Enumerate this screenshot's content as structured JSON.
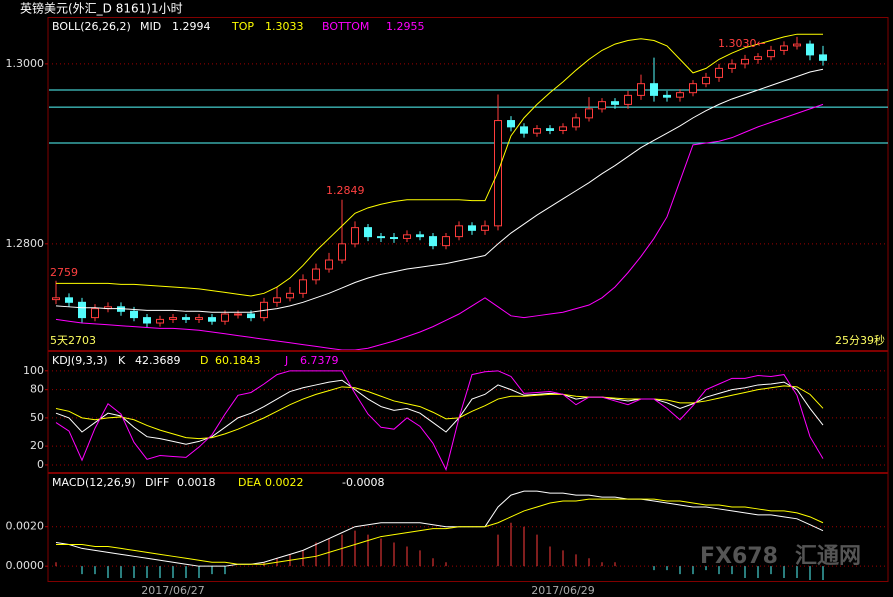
{
  "header": {
    "title": "英镑美元(外汇_D 8161)1小时"
  },
  "status": {
    "timer": "25分39秒"
  },
  "watermark": {
    "brand": "FX678",
    "site": "汇通网"
  },
  "chart_data": [
    {
      "type": "candlestick",
      "legend_title": "BOLL(26,26,2)",
      "open": [
        1.2738,
        1.274,
        1.2735,
        1.2718,
        1.2728,
        1.273,
        1.2725,
        1.2718,
        1.2712,
        1.2716,
        1.2718,
        1.2716,
        1.2718,
        1.2714,
        1.2722,
        1.2722,
        1.2718,
        1.2735,
        1.274,
        1.2745,
        1.276,
        1.2772,
        1.2782,
        1.28,
        1.2818,
        1.2808,
        1.2807,
        1.2806,
        1.281,
        1.2808,
        1.2798,
        1.2808,
        1.282,
        1.2815,
        1.282,
        1.2937,
        1.293,
        1.2923,
        1.2928,
        1.2926,
        1.293,
        1.294,
        1.295,
        1.2958,
        1.2955,
        1.2965,
        1.2978,
        1.2965,
        1.2963,
        1.2968,
        1.2978,
        1.2985,
        1.2995,
        1.3,
        1.3005,
        1.3008,
        1.3015,
        1.302,
        1.3022,
        1.301
      ],
      "high": [
        1.2759,
        1.2745,
        1.274,
        1.2733,
        1.2735,
        1.2735,
        1.273,
        1.2722,
        1.272,
        1.2722,
        1.2722,
        1.2722,
        1.2722,
        1.2726,
        1.2726,
        1.2726,
        1.274,
        1.2752,
        1.2752,
        1.2766,
        1.2778,
        1.279,
        1.2849,
        1.2825,
        1.2822,
        1.2812,
        1.2812,
        1.2815,
        1.2814,
        1.2812,
        1.2812,
        1.2825,
        1.2824,
        1.2826,
        1.2966,
        1.2942,
        1.2934,
        1.2932,
        1.2932,
        1.2934,
        1.2945,
        1.2963,
        1.2962,
        1.2962,
        1.297,
        1.2988,
        1.3007,
        1.297,
        1.2972,
        1.2982,
        1.299,
        1.3,
        1.3005,
        1.301,
        1.3012,
        1.302,
        1.3025,
        1.303,
        1.3026,
        1.302
      ],
      "low": [
        1.2733,
        1.273,
        1.2712,
        1.2714,
        1.2724,
        1.272,
        1.2714,
        1.2707,
        1.2708,
        1.2712,
        1.2712,
        1.2712,
        1.271,
        1.271,
        1.2717,
        1.2714,
        1.2714,
        1.273,
        1.2736,
        1.274,
        1.2755,
        1.2768,
        1.2778,
        1.2796,
        1.2803,
        1.2802,
        1.2801,
        1.2802,
        1.2804,
        1.2794,
        1.2794,
        1.2804,
        1.281,
        1.281,
        1.2815,
        1.2925,
        1.2918,
        1.2919,
        1.2922,
        1.2922,
        1.2926,
        1.2936,
        1.2946,
        1.295,
        1.295,
        1.296,
        1.2958,
        1.2958,
        1.2958,
        1.2964,
        1.2974,
        1.298,
        1.299,
        1.2995,
        1.3,
        1.3004,
        1.301,
        1.3016,
        1.3004,
        1.2998
      ],
      "close": [
        1.274,
        1.2735,
        1.2718,
        1.2728,
        1.273,
        1.2725,
        1.2718,
        1.2712,
        1.2716,
        1.2718,
        1.2716,
        1.2718,
        1.2714,
        1.2722,
        1.2722,
        1.2718,
        1.2735,
        1.274,
        1.2745,
        1.276,
        1.2772,
        1.2782,
        1.28,
        1.2818,
        1.2808,
        1.2807,
        1.2806,
        1.281,
        1.2808,
        1.2798,
        1.2808,
        1.282,
        1.2815,
        1.282,
        1.2937,
        1.293,
        1.2923,
        1.2928,
        1.2926,
        1.293,
        1.294,
        1.295,
        1.2958,
        1.2955,
        1.2965,
        1.2978,
        1.2965,
        1.2963,
        1.2968,
        1.2978,
        1.2985,
        1.2995,
        1.3,
        1.3005,
        1.3008,
        1.3015,
        1.302,
        1.3022,
        1.301,
        1.3004
      ],
      "up_color": "#ff3c3c",
      "down_color": "#54fcfc",
      "series": [
        {
          "name": "MID",
          "color": "#ffffff",
          "values": [
            1.2731,
            1.273,
            1.2729,
            1.2729,
            1.2728,
            1.2728,
            1.2727,
            1.2726,
            1.2726,
            1.2726,
            1.2725,
            1.2725,
            1.2724,
            1.2724,
            1.2724,
            1.2724,
            1.2726,
            1.2728,
            1.2731,
            1.2735,
            1.274,
            1.2745,
            1.2751,
            1.2757,
            1.2762,
            1.2766,
            1.2769,
            1.2772,
            1.2774,
            1.2776,
            1.2778,
            1.2781,
            1.2784,
            1.2787,
            1.28,
            1.2812,
            1.2822,
            1.2832,
            1.2841,
            1.285,
            1.2859,
            1.2868,
            1.2878,
            1.2887,
            1.2897,
            1.2907,
            1.2915,
            1.2923,
            1.2931,
            1.294,
            1.2948,
            1.2955,
            1.2961,
            1.2966,
            1.2971,
            1.2976,
            1.2981,
            1.2986,
            1.2991,
            1.2994
          ]
        },
        {
          "name": "TOP",
          "color": "#ffff00",
          "values": [
            1.2756,
            1.2756,
            1.2756,
            1.2756,
            1.2756,
            1.2755,
            1.2755,
            1.2754,
            1.2753,
            1.2752,
            1.2751,
            1.275,
            1.2748,
            1.2746,
            1.2744,
            1.2742,
            1.2745,
            1.2752,
            1.2762,
            1.2776,
            1.2792,
            1.2806,
            1.282,
            1.2834,
            1.284,
            1.2844,
            1.2847,
            1.2849,
            1.2849,
            1.2849,
            1.2849,
            1.2849,
            1.2848,
            1.2848,
            1.288,
            1.292,
            1.294,
            1.2955,
            1.2968,
            1.298,
            1.2993,
            1.3005,
            1.3015,
            1.3022,
            1.3026,
            1.3028,
            1.3026,
            1.302,
            1.3005,
            1.299,
            1.2995,
            1.3005,
            1.3012,
            1.3018,
            1.3022,
            1.3026,
            1.303,
            1.3033,
            1.3033,
            1.3033
          ]
        },
        {
          "name": "BOTTOM",
          "color": "#ff00ff",
          "values": [
            1.2716,
            1.2714,
            1.2712,
            1.2711,
            1.271,
            1.2709,
            1.2708,
            1.2707,
            1.2706,
            1.2706,
            1.2705,
            1.2704,
            1.2702,
            1.27,
            1.2698,
            1.2696,
            1.2694,
            1.2692,
            1.269,
            1.2688,
            1.2686,
            1.2684,
            1.2682,
            1.2682,
            1.2684,
            1.2688,
            1.2692,
            1.2697,
            1.2702,
            1.2708,
            1.2715,
            1.2722,
            1.2731,
            1.274,
            1.273,
            1.272,
            1.2718,
            1.272,
            1.2722,
            1.2724,
            1.2728,
            1.2732,
            1.274,
            1.2752,
            1.2768,
            1.2786,
            1.2806,
            1.283,
            1.287,
            1.291,
            1.2912,
            1.2914,
            1.2918,
            1.2924,
            1.293,
            1.2935,
            1.294,
            1.2945,
            1.295,
            1.2955
          ]
        }
      ],
      "hlines": [
        1.2971,
        1.2952,
        1.2912
      ],
      "hline_color": "#54fcfc",
      "annotations": [
        "1.3030←",
        "1.2849",
        "2759",
        "5天2703"
      ],
      "ylim": [
        1.2682,
        1.3051
      ],
      "yticks": [
        {
          "value": 1.3,
          "label": "1.3000"
        },
        {
          "value": 1.28,
          "label": "1.2800"
        }
      ],
      "grid": true
    },
    {
      "type": "line",
      "legend_title": "KDJ(9,3,3)",
      "series": [
        {
          "name": "K",
          "color": "#ffffff",
          "values": [
            55,
            50,
            35,
            45,
            55,
            52,
            40,
            30,
            28,
            25,
            22,
            25,
            30,
            40,
            50,
            55,
            62,
            70,
            78,
            82,
            85,
            88,
            90,
            80,
            70,
            62,
            58,
            60,
            55,
            45,
            35,
            50,
            70,
            75,
            85,
            80,
            74,
            75,
            76,
            75,
            70,
            72,
            72,
            70,
            68,
            70,
            70,
            66,
            60,
            65,
            72,
            76,
            80,
            82,
            85,
            86,
            88,
            80,
            60,
            42.3689
          ]
        },
        {
          "name": "D",
          "color": "#ffff00",
          "values": [
            60,
            57,
            50,
            48,
            50,
            51,
            48,
            42,
            37,
            33,
            29,
            28,
            29,
            33,
            38,
            44,
            50,
            57,
            64,
            70,
            75,
            79,
            83,
            82,
            78,
            73,
            68,
            65,
            62,
            56,
            49,
            50,
            57,
            63,
            70,
            73,
            73,
            74,
            75,
            75,
            73,
            72,
            72,
            71,
            70,
            70,
            70,
            69,
            66,
            66,
            68,
            71,
            74,
            77,
            80,
            82,
            84,
            83,
            75,
            60.1843
          ]
        },
        {
          "name": "J",
          "color": "#ff00ff",
          "values": [
            45,
            36,
            5,
            39,
            65,
            54,
            24,
            6,
            10,
            9,
            8,
            19,
            32,
            54,
            74,
            77,
            86,
            96,
            100,
            100,
            100,
            100,
            100,
            76,
            54,
            40,
            38,
            50,
            41,
            23,
            -5,
            50,
            96,
            99,
            100,
            94,
            76,
            77,
            78,
            75,
            64,
            72,
            72,
            68,
            64,
            70,
            70,
            60,
            48,
            63,
            80,
            86,
            92,
            92,
            95,
            94,
            96,
            74,
            30,
            6.7379
          ]
        }
      ],
      "ylim": [
        -7.5,
        120
      ],
      "yticks": [
        0,
        20,
        50,
        80,
        100
      ],
      "grid": true
    },
    {
      "type": "macd",
      "legend_title": "MACD(12,26,9)",
      "categories": [
        null,
        null,
        null,
        null,
        null,
        null,
        null,
        null,
        null,
        "2017/06/27",
        null,
        null,
        null,
        null,
        null,
        null,
        null,
        null,
        null,
        null,
        null,
        null,
        null,
        null,
        null,
        null,
        null,
        null,
        null,
        null,
        null,
        null,
        null,
        null,
        null,
        null,
        null,
        null,
        null,
        "2017/06/29",
        null,
        null,
        null,
        null,
        null,
        null,
        null,
        null,
        null,
        null,
        null,
        null,
        null,
        null,
        null,
        null,
        null,
        null,
        null,
        null
      ],
      "series": [
        {
          "name": "DIFF",
          "color": "#ffffff",
          "values": [
            0.0012,
            0.0011,
            0.0009,
            0.0008,
            0.0007,
            0.0006,
            0.0005,
            0.0004,
            0.0003,
            0.0002,
            0.0001,
            0.0,
            0.0,
            0.0,
            0.0001,
            0.0001,
            0.0002,
            0.0004,
            0.0006,
            0.0008,
            0.0011,
            0.0014,
            0.0017,
            0.002,
            0.0021,
            0.0022,
            0.0022,
            0.0022,
            0.0022,
            0.0021,
            0.002,
            0.002,
            0.002,
            0.002,
            0.003,
            0.0036,
            0.0038,
            0.0038,
            0.0037,
            0.0037,
            0.0036,
            0.0036,
            0.0035,
            0.0035,
            0.0034,
            0.0034,
            0.0033,
            0.0032,
            0.0031,
            0.003,
            0.003,
            0.0029,
            0.0028,
            0.0027,
            0.0026,
            0.0026,
            0.0025,
            0.0024,
            0.0021,
            0.0018
          ]
        },
        {
          "name": "DEA",
          "color": "#ffff00",
          "values": [
            0.0011,
            0.0011,
            0.0011,
            0.001,
            0.001,
            0.0009,
            0.0008,
            0.0007,
            0.0006,
            0.0005,
            0.0004,
            0.0003,
            0.0002,
            0.0002,
            0.0001,
            0.0001,
            0.0001,
            0.0002,
            0.0003,
            0.0004,
            0.0005,
            0.0007,
            0.0009,
            0.0011,
            0.0013,
            0.0015,
            0.0016,
            0.0017,
            0.0018,
            0.0019,
            0.0019,
            0.002,
            0.002,
            0.002,
            0.0022,
            0.0025,
            0.0028,
            0.003,
            0.0032,
            0.0033,
            0.0033,
            0.0034,
            0.0034,
            0.0034,
            0.0034,
            0.0034,
            0.0034,
            0.0033,
            0.0033,
            0.0032,
            0.0031,
            0.0031,
            0.003,
            0.003,
            0.0029,
            0.0028,
            0.0028,
            0.0027,
            0.0025,
            0.0022
          ]
        }
      ],
      "histogram": {
        "up_color": "#ff3c3c",
        "down_color": "#54fcfc",
        "values": [
          0.0002,
          0,
          -0.0004,
          -0.0004,
          -0.0006,
          -0.0006,
          -0.0006,
          -0.0006,
          -0.0006,
          -0.0006,
          -0.0006,
          -0.0006,
          -0.0004,
          -0.0004,
          0,
          0,
          0.0002,
          0.0004,
          0.0006,
          0.0008,
          0.0012,
          0.0014,
          0.0016,
          0.0018,
          0.0016,
          0.0014,
          0.0012,
          0.001,
          0.0008,
          0.0004,
          0.0002,
          0,
          0,
          0,
          0.0016,
          0.0022,
          0.002,
          0.0016,
          0.001,
          0.0008,
          0.0006,
          0.0004,
          0.0002,
          0.0002,
          0,
          0,
          -0.0002,
          -0.0002,
          -0.0004,
          -0.0004,
          -0.0002,
          -0.0004,
          -0.0004,
          -0.0006,
          -0.0006,
          -0.0004,
          -0.0006,
          -0.0006,
          -0.0008,
          -0.0008
        ]
      },
      "ylim": [
        -0.0007,
        0.00467
      ],
      "yticks": [
        {
          "value": 0.002,
          "label": "0.0020"
        },
        {
          "value": 0,
          "label": "0.0000"
        }
      ],
      "grid": true
    }
  ]
}
